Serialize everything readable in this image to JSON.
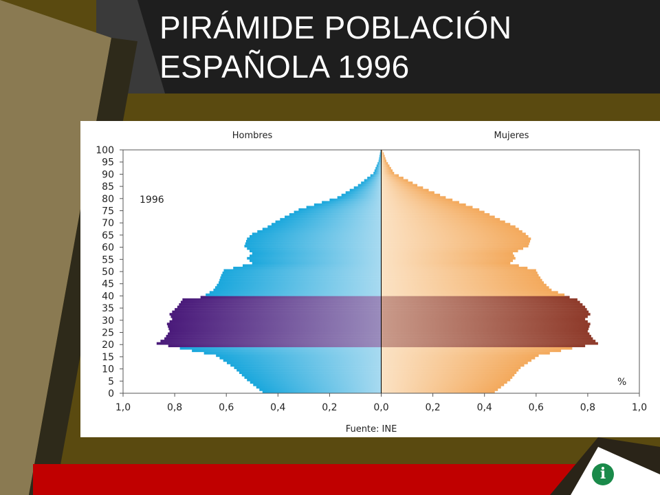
{
  "slide": {
    "title_line1": "PIRÁMIDE POBLACIÓN",
    "title_line2": "ESPAÑOLA 1996",
    "logo_glyph": "i"
  },
  "colors": {
    "men": "#1aa7dc",
    "women": "#f3a95c",
    "men_highlight": "#4a1a7a",
    "women_highlight": "#8e3a2a"
  },
  "chart_data": {
    "type": "bar",
    "orientation": "horizontal-population-pyramid",
    "left_header": "Hombres",
    "right_header": "Mujeres",
    "year_label": "1996",
    "unit_label": "%",
    "source": "Fuente: INE",
    "y_ticks": [
      "0",
      "5",
      "10",
      "15",
      "20",
      "25",
      "30",
      "35",
      "40",
      "45",
      "50",
      "55",
      "60",
      "65",
      "70",
      "75",
      "80",
      "85",
      "90",
      "95",
      "100"
    ],
    "x_ticks": [
      "1,0",
      "0,8",
      "0,6",
      "0,4",
      "0,2",
      "0,0",
      "0,2",
      "0,4",
      "0,6",
      "0,8",
      "1,0"
    ],
    "xlim": [
      0,
      1.0
    ],
    "ylim": [
      0,
      100
    ],
    "highlight_ages": [
      19,
      39
    ],
    "series": [
      {
        "name": "Hombres",
        "ages": [
          0,
          5,
          10,
          15,
          18,
          20,
          22,
          25,
          28,
          30,
          32,
          35,
          38,
          39,
          40,
          42,
          45,
          48,
          50,
          53,
          55,
          57,
          60,
          63,
          65,
          68,
          70,
          75,
          80,
          85,
          90,
          95,
          98,
          100
        ],
        "values": [
          0.46,
          0.52,
          0.57,
          0.64,
          0.78,
          0.87,
          0.84,
          0.82,
          0.83,
          0.81,
          0.82,
          0.79,
          0.77,
          0.7,
          0.68,
          0.65,
          0.63,
          0.62,
          0.61,
          0.5,
          0.52,
          0.5,
          0.53,
          0.52,
          0.5,
          0.44,
          0.41,
          0.32,
          0.17,
          0.09,
          0.03,
          0.01,
          0.005,
          0.0
        ]
      },
      {
        "name": "Mujeres",
        "ages": [
          0,
          5,
          10,
          15,
          18,
          20,
          22,
          25,
          28,
          30,
          32,
          35,
          38,
          39,
          40,
          42,
          45,
          48,
          50,
          53,
          55,
          57,
          60,
          63,
          65,
          68,
          70,
          75,
          80,
          85,
          90,
          95,
          98,
          100
        ],
        "values": [
          0.44,
          0.5,
          0.54,
          0.61,
          0.74,
          0.84,
          0.82,
          0.8,
          0.81,
          0.79,
          0.81,
          0.79,
          0.76,
          0.73,
          0.71,
          0.66,
          0.63,
          0.61,
          0.6,
          0.5,
          0.52,
          0.51,
          0.57,
          0.58,
          0.56,
          0.52,
          0.48,
          0.38,
          0.25,
          0.14,
          0.05,
          0.02,
          0.01,
          0.0
        ]
      }
    ]
  }
}
